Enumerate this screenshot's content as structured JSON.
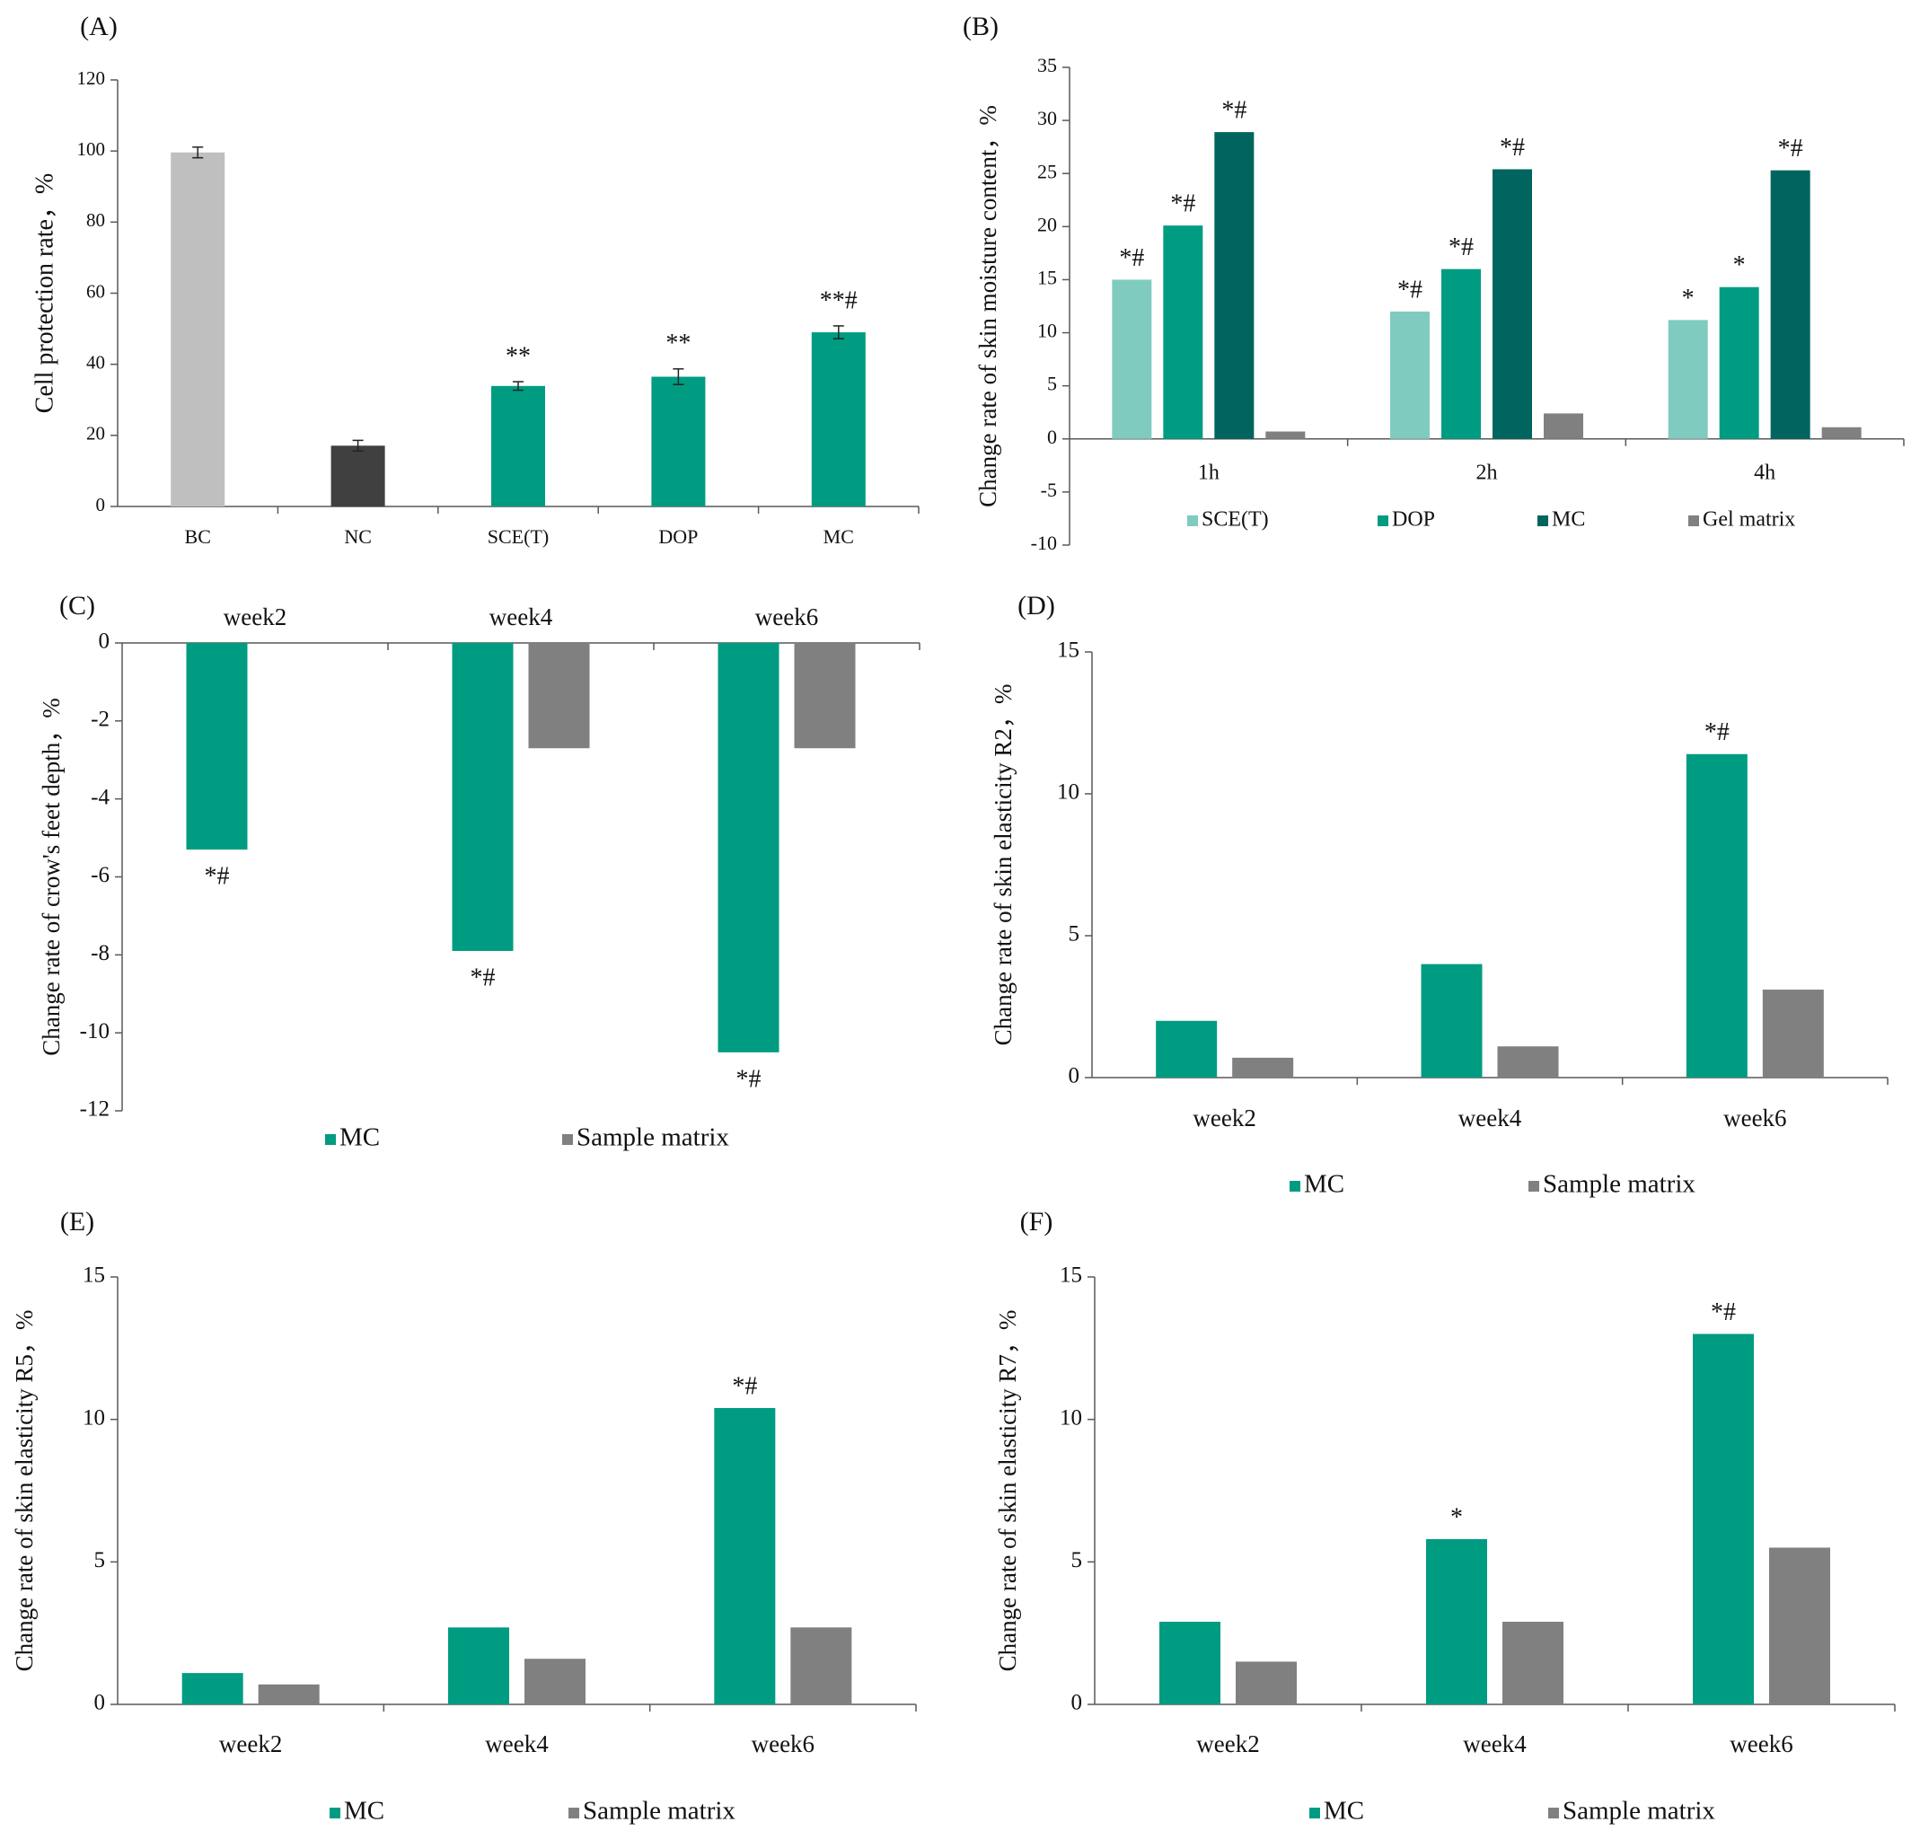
{
  "colors": {
    "light_gray": "#bfbfbf",
    "dark_gray": "#404040",
    "teal": "#009c82",
    "light_teal": "#80cbbf",
    "dark_teal": "#00655e",
    "gray": "#808080",
    "axis": "#595959"
  },
  "chart_data": [
    {
      "id": "A",
      "panel_label": "(A)",
      "type": "bar",
      "categories": [
        "BC",
        "NC",
        "SCE(T)",
        "DOP",
        "MC"
      ],
      "values": [
        99.6,
        17.1,
        33.9,
        36.5,
        49.0
      ],
      "errors": [
        1.5,
        1.5,
        1.2,
        2.2,
        1.8
      ],
      "bar_colors": [
        "light_gray",
        "dark_gray",
        "teal",
        "teal",
        "teal"
      ],
      "annotations": [
        "",
        "",
        "**",
        "**",
        "**#"
      ],
      "ylabel": "Cell protection rate，%",
      "ylim": [
        0,
        120
      ],
      "yticks": [
        "0",
        "20",
        "40",
        "60",
        "80",
        "100",
        "120"
      ],
      "grid": false,
      "legend": null
    },
    {
      "id": "B",
      "panel_label": "(B)",
      "type": "bar",
      "categories": [
        "1h",
        "2h",
        "4h"
      ],
      "series": [
        {
          "name": "SCE(T)",
          "color": "light_teal",
          "values": [
            15.0,
            12.0,
            11.2
          ],
          "annotations": [
            "*#",
            "*#",
            "*"
          ]
        },
        {
          "name": "DOP",
          "color": "teal",
          "values": [
            20.1,
            16.0,
            14.3
          ],
          "annotations": [
            "*#",
            "*#",
            "*"
          ]
        },
        {
          "name": "MC",
          "color": "dark_teal",
          "values": [
            28.9,
            25.4,
            25.3
          ],
          "annotations": [
            "*#",
            "*#",
            "*#"
          ]
        },
        {
          "name": "Gel matrix",
          "color": "gray",
          "values": [
            0.7,
            2.4,
            1.1
          ],
          "annotations": [
            "",
            "",
            ""
          ]
        }
      ],
      "ylabel": "Change rate of skin moisture content，%",
      "ylim": [
        -10,
        35
      ],
      "yticks": [
        "-10",
        "-5",
        "0",
        "5",
        "10",
        "15",
        "20",
        "25",
        "30",
        "35"
      ],
      "grid": false,
      "legend": "bottom"
    },
    {
      "id": "C",
      "panel_label": "(C)",
      "type": "bar",
      "categories": [
        "week2",
        "week4",
        "week6"
      ],
      "series": [
        {
          "name": "MC",
          "color": "teal",
          "values": [
            -5.3,
            -7.9,
            -10.5
          ],
          "annotations": [
            "*#",
            "*#",
            "*#"
          ]
        },
        {
          "name": "Sample matrix",
          "color": "gray",
          "values": [
            0,
            -2.7,
            -2.7
          ],
          "annotations": [
            "",
            "",
            ""
          ]
        }
      ],
      "ylabel": "Change rate of crow's feet depth，%",
      "ylim": [
        -12,
        0
      ],
      "yticks": [
        "-12",
        "-10",
        "-8",
        "-6",
        "-4",
        "-2",
        "0"
      ],
      "grid": false,
      "legend": "bottom"
    },
    {
      "id": "D",
      "panel_label": "(D)",
      "type": "bar",
      "categories": [
        "week2",
        "week4",
        "week6"
      ],
      "series": [
        {
          "name": "MC",
          "color": "teal",
          "values": [
            2.0,
            4.0,
            11.4
          ],
          "annotations": [
            "",
            "",
            "*#"
          ]
        },
        {
          "name": "Sample matrix",
          "color": "gray",
          "values": [
            0.7,
            1.1,
            3.1
          ],
          "annotations": [
            "",
            "",
            ""
          ]
        }
      ],
      "ylabel": "Change rate of skin elasticity  R2，%",
      "ylim": [
        0,
        15
      ],
      "yticks": [
        "0",
        "5",
        "10",
        "15"
      ],
      "grid": false,
      "legend": "bottom"
    },
    {
      "id": "E",
      "panel_label": "(E)",
      "type": "bar",
      "categories": [
        "week2",
        "week4",
        "week6"
      ],
      "series": [
        {
          "name": "MC",
          "color": "teal",
          "values": [
            1.1,
            2.7,
            10.4
          ],
          "annotations": [
            "",
            "",
            "*#"
          ]
        },
        {
          "name": "Sample matrix",
          "color": "gray",
          "values": [
            0.7,
            1.6,
            2.7
          ],
          "annotations": [
            "",
            "",
            ""
          ]
        }
      ],
      "ylabel": "Change rate of skin elasticity R5，%",
      "ylim": [
        0,
        15
      ],
      "yticks": [
        "0",
        "5",
        "10",
        "15"
      ],
      "grid": false,
      "legend": "bottom"
    },
    {
      "id": "F",
      "panel_label": "(F)",
      "type": "bar",
      "categories": [
        "week2",
        "week4",
        "week6"
      ],
      "series": [
        {
          "name": "MC",
          "color": "teal",
          "values": [
            2.9,
            5.8,
            13.0
          ],
          "annotations": [
            "",
            "*",
            "*#"
          ]
        },
        {
          "name": "Sample matrix",
          "color": "gray",
          "values": [
            1.5,
            2.9,
            5.5
          ],
          "annotations": [
            "",
            "",
            ""
          ]
        }
      ],
      "ylabel": "Change rate of skin elasticity R7，%",
      "ylim": [
        0,
        15
      ],
      "yticks": [
        "0",
        "5",
        "10",
        "15"
      ],
      "grid": false,
      "legend": "bottom"
    }
  ]
}
